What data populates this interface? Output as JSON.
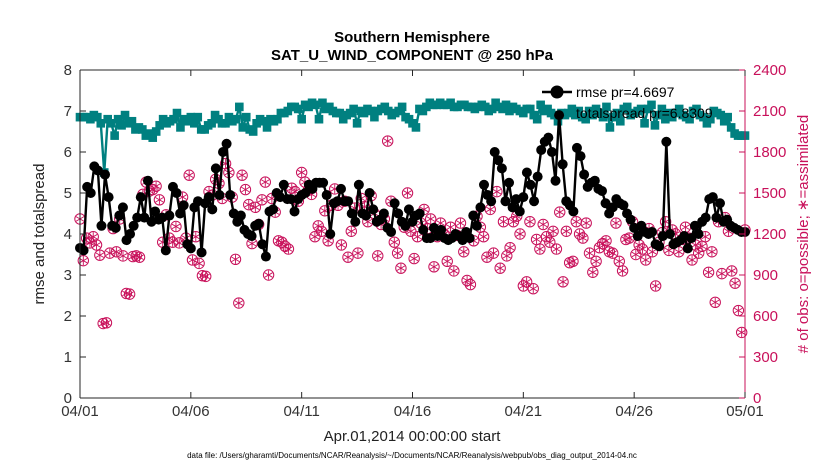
{
  "chart_data": {
    "type": "line",
    "title": "Southern Hemisphere",
    "subtitle": "SAT_U_WIND_COMPONENT @ 250 hPa",
    "xlabel": "Apr.01,2014 00:00:00 start",
    "ylabel": "rmse and totalspread",
    "ylabel_right": "# of obs: o=possible; ∗=assimilated",
    "footnote": "data file: /Users/gharamti/Documents/NCAR/Reanalysis/~/Documents/NCAR/Reanalysis/webpub/obs_diag_output_2014-04.nc",
    "x_range_days": [
      0,
      30
    ],
    "x_ticks": [
      {
        "day": 0,
        "label": "04/01"
      },
      {
        "day": 5,
        "label": "04/06"
      },
      {
        "day": 10,
        "label": "04/11"
      },
      {
        "day": 15,
        "label": "04/16"
      },
      {
        "day": 20,
        "label": "04/21"
      },
      {
        "day": 25,
        "label": "04/26"
      },
      {
        "day": 30,
        "label": "05/01"
      }
    ],
    "ylim": [
      0,
      8
    ],
    "y_ticks": [
      "0",
      "1",
      "2",
      "3",
      "4",
      "5",
      "6",
      "7",
      "8"
    ],
    "ylim_right": [
      0,
      2400
    ],
    "y_ticks_right": [
      "0",
      "300",
      "600",
      "900",
      "1200",
      "1500",
      "1800",
      "2100",
      "2400"
    ],
    "grid": false,
    "legend_position": "top-right",
    "colors": {
      "rmse": "#000000",
      "totalspread": "#008080",
      "obs": "#c8105a"
    },
    "legend": [
      {
        "key": "rmse",
        "label": "rmse pr=4.6697"
      },
      {
        "key": "totalspread",
        "label": "totalspread pr=6.8309"
      }
    ],
    "series": [
      {
        "key": "rmse",
        "axis": "left",
        "values": [
          3.66,
          3.6,
          5.15,
          5.0,
          5.65,
          5.55,
          4.2,
          5.45,
          4.9,
          4.2,
          4.15,
          4.45,
          4.65,
          3.85,
          4.0,
          4.2,
          4.4,
          4.9,
          4.4,
          5.3,
          4.3,
          4.55,
          4.35,
          4.4,
          3.6,
          4.45,
          5.15,
          5.0,
          4.5,
          4.7,
          3.75,
          3.65,
          4.65,
          4.8,
          3.55,
          4.75,
          4.9,
          4.6,
          5.6,
          4.95,
          6.0,
          6.2,
          4.95,
          4.5,
          4.3,
          4.45,
          4.1,
          4.0,
          3.95,
          4.2,
          4.25,
          3.75,
          3.45,
          4.55,
          4.6,
          5.0,
          4.9,
          5.2,
          4.85,
          4.85,
          4.55,
          4.85,
          4.95,
          5.0,
          5.2,
          5.1,
          5.25,
          5.25,
          5.25,
          4.95,
          4.0,
          4.75,
          4.8,
          5.1,
          4.8,
          4.8,
          4.5,
          4.3,
          5.2,
          4.5,
          4.45,
          5.0,
          4.6,
          4.3,
          4.35,
          4.5,
          4.15,
          4.05,
          4.75,
          4.5,
          4.3,
          4.2,
          4.6,
          4.3,
          4.45,
          4.5,
          4.1,
          3.9,
          3.9,
          4.15,
          3.95,
          4.1,
          3.9,
          3.85,
          3.9,
          4.0,
          3.95,
          3.85,
          4.05,
          3.9,
          4.45,
          4.2,
          4.65,
          5.2,
          4.95,
          4.8,
          6.0,
          5.8,
          5.6,
          4.8,
          5.25,
          4.65,
          4.85,
          4.55,
          4.9,
          5.5,
          5.2,
          4.8,
          5.4,
          6.05,
          6.25,
          6.35,
          6.0,
          5.3,
          6.9,
          5.7,
          4.8,
          4.7,
          4.55,
          6.1,
          5.9,
          5.45,
          5.15,
          5.25,
          5.3,
          5.1,
          5.05,
          4.75,
          4.5,
          4.65,
          4.85,
          4.75,
          4.7,
          4.5,
          4.35,
          4.15,
          3.95,
          4.2,
          4.05,
          4.0,
          4.05,
          3.75,
          3.7,
          3.95,
          6.25,
          4.0,
          3.75,
          3.8,
          3.85,
          3.95,
          3.65,
          3.9,
          4.2,
          4.0,
          4.3,
          4.4,
          4.85,
          4.9,
          4.4,
          4.75,
          4.3,
          4.35,
          4.2,
          4.15,
          4.1,
          4.05,
          4.05
        ]
      },
      {
        "key": "totalspread",
        "axis": "left",
        "values": [
          6.85,
          6.85,
          6.85,
          6.8,
          6.9,
          6.85,
          6.7,
          5.5,
          6.8,
          6.7,
          6.4,
          6.8,
          6.65,
          6.9,
          6.7,
          6.75,
          6.55,
          6.6,
          6.55,
          6.4,
          6.45,
          6.35,
          6.5,
          6.65,
          6.8,
          6.7,
          6.75,
          6.8,
          6.95,
          6.6,
          6.8,
          6.75,
          6.85,
          6.7,
          6.85,
          6.55,
          6.55,
          6.65,
          6.7,
          6.9,
          6.8,
          6.7,
          6.7,
          6.85,
          6.75,
          6.8,
          7.1,
          6.6,
          6.85,
          6.55,
          6.5,
          6.7,
          6.8,
          6.75,
          6.6,
          6.8,
          6.75,
          6.8,
          6.95,
          6.95,
          7.0,
          7.1,
          7.1,
          7.05,
          6.8,
          7.15,
          7.1,
          7.2,
          7.15,
          6.8,
          7.2,
          7.05,
          7.1,
          7.0,
          6.95,
          6.95,
          6.8,
          6.9,
          6.95,
          7.05,
          6.7,
          7.0,
          6.95,
          7.05,
          7.0,
          6.85,
          7.0,
          7.05,
          7.1,
          7.0,
          6.9,
          6.95,
          7.0,
          7.1,
          6.85,
          6.8,
          6.7,
          6.6,
          7.05,
          7.0,
          7.1,
          7.2,
          7.15,
          7.15,
          7.2,
          7.15,
          7.15,
          7.2,
          7.1,
          7.1,
          7.15,
          7.15,
          7.1,
          7.1,
          7.05,
          7.1,
          7.15,
          7.1,
          7.0,
          7.05,
          7.2,
          7.1,
          7.05,
          7.15,
          7.0,
          7.1,
          7.05,
          7.0,
          6.95,
          7.05,
          7.05,
          6.9,
          6.8,
          7.15,
          7.0,
          7.05,
          6.95,
          6.9,
          6.75,
          6.95,
          6.9,
          6.95,
          7.05,
          6.9,
          7.0,
          6.85,
          6.8,
          7.0,
          6.9,
          7.05,
          6.95,
          6.85,
          7.1,
          6.6,
          6.85,
          6.95,
          6.75,
          7.05,
          7.1,
          6.9,
          6.95,
          7.0,
          7.05,
          6.7,
          7.05,
          7.15,
          6.65,
          6.9,
          7.05,
          6.8,
          6.95,
          6.85,
          6.95,
          7.05,
          6.9,
          6.85,
          6.8,
          7.0,
          7.05,
          6.9,
          6.85,
          6.7,
          6.8,
          7.0,
          6.95,
          6.9,
          6.75,
          6.85,
          6.6,
          6.45,
          6.4,
          6.4,
          6.4
        ]
      },
      {
        "key": "obs_possible",
        "axis": "right",
        "values": [
          1310,
          1005,
          1170,
          1135,
          1180,
          1120,
          1045,
          545,
          550,
          1060,
          1240,
          1070,
          1310,
          1040,
          765,
          760,
          1035,
          1040,
          1030,
          1490,
          1580,
          1515,
          1525,
          1550,
          1450,
          1140,
          1340,
          1170,
          1140,
          1255,
          1135,
          1470,
          1170,
          1630,
          1010,
          1180,
          985,
          895,
          890,
          1510,
          1485,
          1600,
          1570,
          1460,
          1715,
          1650,
          1470,
          1015,
          695,
          1630,
          1525,
          1415,
          1130,
          1395,
          1270,
          1450,
          1580,
          900,
          1460,
          1360,
          1150,
          1140,
          1110,
          1090,
          1535,
          1510,
          1440,
          1650,
          1580,
          1520,
          1490,
          1180,
          1260,
          1220,
          1370,
          1150,
          1410,
          1530,
          1410,
          1120,
          1440,
          1030,
          1220,
          1390,
          1060,
          1460,
          1400,
          1290,
          1480,
          1350,
          1040,
          1270,
          1310,
          1880,
          1440,
          1140,
          1060,
          950,
          1250,
          1500,
          1220,
          1020,
          1180,
          1280,
          1380,
          1240,
          1310,
          960,
          1180,
          1280,
          1200,
          1000,
          1250,
          930,
          1190,
          1280,
          1070,
          860,
          830,
          1150,
          1330,
          1250,
          1180,
          1030,
          1380,
          1060,
          1510,
          950,
          1290,
          1040,
          1100,
          1290,
          1330,
          1200,
          820,
          850,
          1290,
          800,
          1160,
          1090,
          1270,
          1180,
          1140,
          1220,
          1090,
          1360,
          850,
          1220,
          990,
          1000,
          1290,
          1200,
          1170,
          1280,
          1060,
          920,
          1000,
          1100,
          1130,
          1150,
          1070,
          1060,
          1280,
          1000,
          930,
          1160,
          1170,
          1290,
          1050,
          1120,
          1090,
          1010,
          1240,
          1070,
          820,
          1140,
          1210,
          1290,
          1080,
          1230,
          1200,
          1070,
          1160,
          1250,
          1170,
          1010,
          1120,
          1060,
          1110,
          1180,
          920,
          1070,
          700,
          1290,
          910,
          1320,
          1220,
          930,
          840,
          640,
          480,
          1230
        ]
      },
      {
        "key": "obs_assimilated",
        "axis": "right",
        "values": [
          1310,
          1005,
          1170,
          1135,
          1180,
          1120,
          1045,
          545,
          550,
          1060,
          1240,
          1070,
          1310,
          1040,
          765,
          760,
          1035,
          1040,
          1030,
          1490,
          1580,
          1515,
          1525,
          1550,
          1450,
          1140,
          1340,
          1170,
          1140,
          1255,
          1135,
          1470,
          1170,
          1630,
          1010,
          1180,
          985,
          895,
          890,
          1510,
          1485,
          1600,
          1570,
          1460,
          1715,
          1650,
          1470,
          1015,
          695,
          1630,
          1525,
          1415,
          1130,
          1395,
          1270,
          1450,
          1580,
          900,
          1460,
          1360,
          1150,
          1140,
          1110,
          1090,
          1535,
          1510,
          1440,
          1650,
          1580,
          1520,
          1490,
          1180,
          1260,
          1220,
          1370,
          1150,
          1410,
          1530,
          1410,
          1120,
          1440,
          1030,
          1220,
          1390,
          1060,
          1460,
          1400,
          1290,
          1480,
          1350,
          1040,
          1270,
          1310,
          1880,
          1440,
          1140,
          1060,
          950,
          1250,
          1500,
          1220,
          1020,
          1180,
          1280,
          1380,
          1240,
          1310,
          960,
          1180,
          1280,
          1200,
          1000,
          1250,
          930,
          1190,
          1280,
          1070,
          860,
          830,
          1150,
          1330,
          1250,
          1180,
          1030,
          1380,
          1060,
          1510,
          950,
          1290,
          1040,
          1100,
          1290,
          1330,
          1200,
          820,
          850,
          1290,
          800,
          1160,
          1090,
          1270,
          1180,
          1140,
          1220,
          1090,
          1360,
          850,
          1220,
          990,
          1000,
          1290,
          1200,
          1170,
          1280,
          1060,
          920,
          1000,
          1100,
          1130,
          1150,
          1070,
          1060,
          1280,
          1000,
          930,
          1160,
          1170,
          1290,
          1050,
          1120,
          1090,
          1010,
          1240,
          1070,
          820,
          1140,
          1210,
          1290,
          1080,
          1230,
          1200,
          1070,
          1160,
          1250,
          1170,
          1010,
          1120,
          1060,
          1110,
          1180,
          920,
          1070,
          700,
          1290,
          910,
          1320,
          1220,
          930,
          840,
          640,
          480,
          1230
        ]
      }
    ]
  }
}
